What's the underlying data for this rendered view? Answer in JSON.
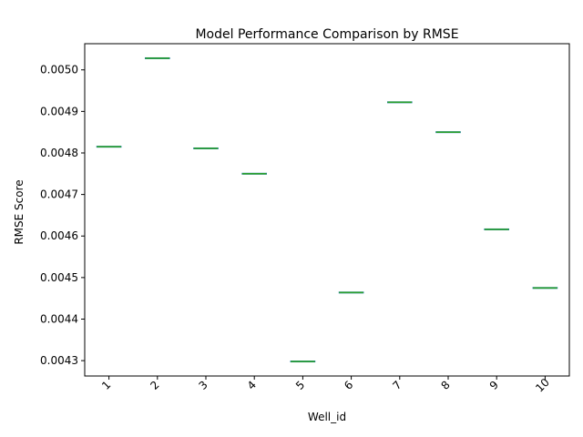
{
  "chart_data": {
    "type": "box",
    "title": "Model Performance Comparison by RMSE",
    "xlabel": "Well_id",
    "ylabel": "RMSE Score",
    "categories": [
      "1",
      "2",
      "3",
      "4",
      "5",
      "6",
      "7",
      "8",
      "9",
      "10"
    ],
    "values": [
      0.004815,
      0.005028,
      0.004811,
      0.00475,
      0.004298,
      0.004464,
      0.004922,
      0.00485,
      0.004616,
      0.004475
    ],
    "ylim": [
      0.004263,
      0.005063
    ],
    "yticks": [
      "0.0043",
      "0.0044",
      "0.0045",
      "0.0046",
      "0.0047",
      "0.0048",
      "0.0049",
      "0.0050"
    ],
    "ytick_values": [
      0.0043,
      0.0044,
      0.0045,
      0.0046,
      0.0047,
      0.0048,
      0.0049,
      0.005
    ],
    "grid": false,
    "median_color": "#2ca02c",
    "box_color": "#1f77b4",
    "x_tick_rotation": -45
  }
}
